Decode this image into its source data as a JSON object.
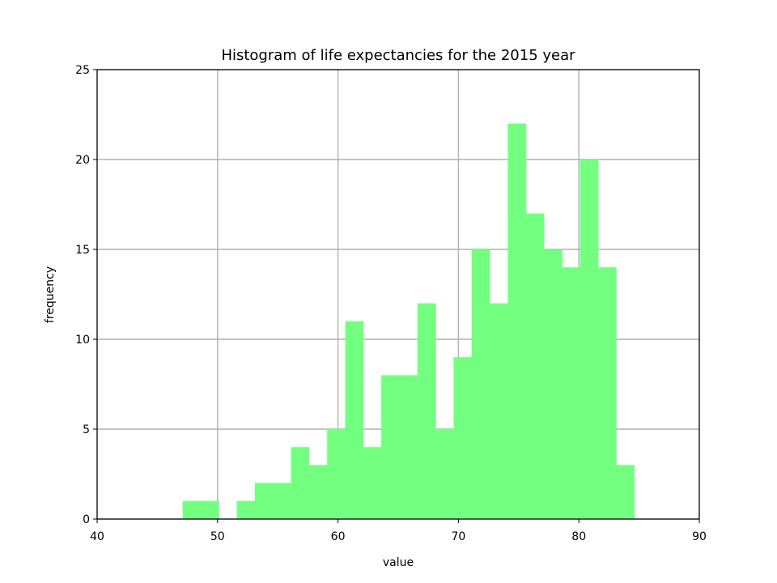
{
  "chart_data": {
    "type": "bar",
    "title": "Histogram of life expectancies for the 2015 year",
    "xlabel": "value",
    "ylabel": "frequency",
    "xlim": [
      40,
      90
    ],
    "ylim": [
      0,
      25
    ],
    "xticks": [
      40,
      50,
      60,
      70,
      80,
      90
    ],
    "yticks": [
      0,
      5,
      10,
      15,
      20,
      25
    ],
    "grid": true,
    "bar_color": "#73ff80",
    "bins": [
      {
        "x0": 47.1,
        "x1": 48.6,
        "value": 1
      },
      {
        "x0": 48.6,
        "x1": 50.1,
        "value": 1
      },
      {
        "x0": 50.1,
        "x1": 51.6,
        "value": 0
      },
      {
        "x0": 51.6,
        "x1": 53.1,
        "value": 1
      },
      {
        "x0": 53.1,
        "x1": 54.6,
        "value": 2
      },
      {
        "x0": 54.6,
        "x1": 56.1,
        "value": 2
      },
      {
        "x0": 56.1,
        "x1": 57.6,
        "value": 4
      },
      {
        "x0": 57.6,
        "x1": 59.1,
        "value": 3
      },
      {
        "x0": 59.1,
        "x1": 60.6,
        "value": 5
      },
      {
        "x0": 60.6,
        "x1": 62.1,
        "value": 11
      },
      {
        "x0": 62.1,
        "x1": 63.6,
        "value": 4
      },
      {
        "x0": 63.6,
        "x1": 65.1,
        "value": 8
      },
      {
        "x0": 65.1,
        "x1": 66.6,
        "value": 8
      },
      {
        "x0": 66.6,
        "x1": 68.1,
        "value": 12
      },
      {
        "x0": 68.1,
        "x1": 69.6,
        "value": 5
      },
      {
        "x0": 69.6,
        "x1": 71.1,
        "value": 9
      },
      {
        "x0": 71.1,
        "x1": 72.6,
        "value": 15
      },
      {
        "x0": 72.6,
        "x1": 74.1,
        "value": 12
      },
      {
        "x0": 74.1,
        "x1": 75.6,
        "value": 22
      },
      {
        "x0": 75.6,
        "x1": 77.1,
        "value": 17
      },
      {
        "x0": 77.1,
        "x1": 78.6,
        "value": 15
      },
      {
        "x0": 78.6,
        "x1": 80.1,
        "value": 14
      },
      {
        "x0": 80.1,
        "x1": 81.6,
        "value": 20
      },
      {
        "x0": 81.6,
        "x1": 83.1,
        "value": 14
      },
      {
        "x0": 83.1,
        "x1": 84.6,
        "value": 3
      }
    ]
  }
}
